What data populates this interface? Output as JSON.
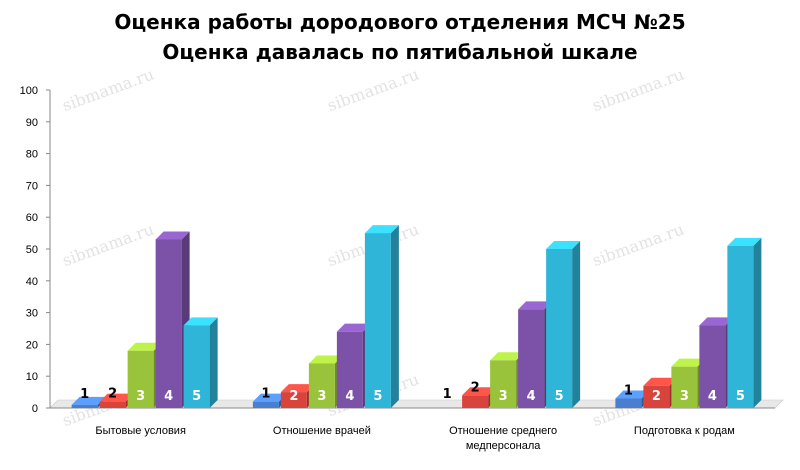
{
  "chart_data": {
    "type": "bar",
    "title": "Оценка работы дородового отделения МСЧ №25",
    "subtitle": "Оценка давалась по пятибальной шкале",
    "categories": [
      [
        "Бытовые условия"
      ],
      [
        "Отношение врачей"
      ],
      [
        "Отношение среднего",
        "медперсонала"
      ],
      [
        "Подготовка к родам"
      ]
    ],
    "series": [
      {
        "name": "1",
        "color": "#4a7fd0",
        "values": [
          1,
          2,
          0,
          3
        ]
      },
      {
        "name": "2",
        "color": "#d8443c",
        "values": [
          2,
          5,
          4,
          7
        ]
      },
      {
        "name": "3",
        "color": "#98c33a",
        "values": [
          18,
          14,
          15,
          13
        ]
      },
      {
        "name": "4",
        "color": "#7b52a8",
        "values": [
          53,
          24,
          31,
          26
        ]
      },
      {
        "name": "5",
        "color": "#2fb5d8",
        "values": [
          26,
          55,
          50,
          51
        ]
      }
    ],
    "ylim": [
      0,
      100
    ],
    "yticks": [
      0,
      10,
      20,
      30,
      40,
      50,
      60,
      70,
      80,
      90,
      100
    ],
    "grid": false,
    "watermark": "sibmama.ru"
  }
}
